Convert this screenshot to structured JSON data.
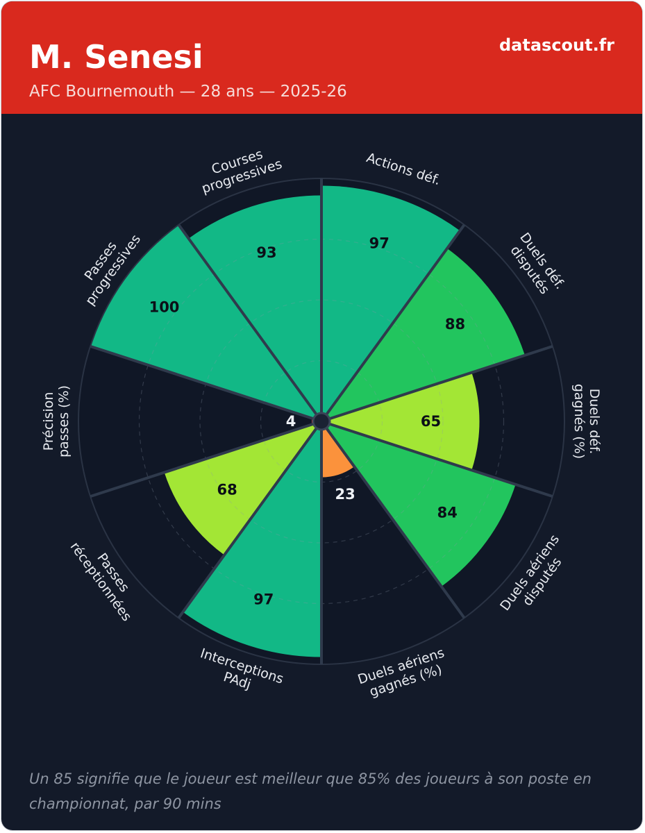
{
  "header": {
    "title": "M. Senesi",
    "subtitle": "AFC Bournemouth — 28 ans — 2025-26",
    "brand": "datascout.fr"
  },
  "footer": {
    "note": "Un 85 signifie que le joueur est meilleur que 85% des joueurs à son poste en championnat, par 90 mins"
  },
  "colors": {
    "card_background": "#131a29",
    "header_background": "#d9291e",
    "very_high": "#12b886",
    "high": "#22c55e",
    "medium": "#a3e635",
    "low": "#fb923c",
    "very_low": "#ef4444"
  },
  "chart_data": {
    "type": "pie",
    "subtype": "polar-percentile",
    "rlim": [
      0,
      100
    ],
    "grid": true,
    "categories": [
      [
        "Actions déf."
      ],
      [
        "Duels déf.",
        "disputés"
      ],
      [
        "Duels déf.",
        "gagnés (%)"
      ],
      [
        "Duels aériens",
        "disputés"
      ],
      [
        "Duels aériens",
        "gagnés (%)"
      ],
      [
        "Interceptions",
        "PAdj"
      ],
      [
        "Passes",
        "réceptionnées"
      ],
      [
        "Précision",
        "passes (%)"
      ],
      [
        "Passes",
        "progressives"
      ],
      [
        "Courses",
        "progressives"
      ]
    ],
    "values": [
      97,
      88,
      65,
      84,
      23,
      97,
      68,
      4,
      100,
      93
    ]
  }
}
